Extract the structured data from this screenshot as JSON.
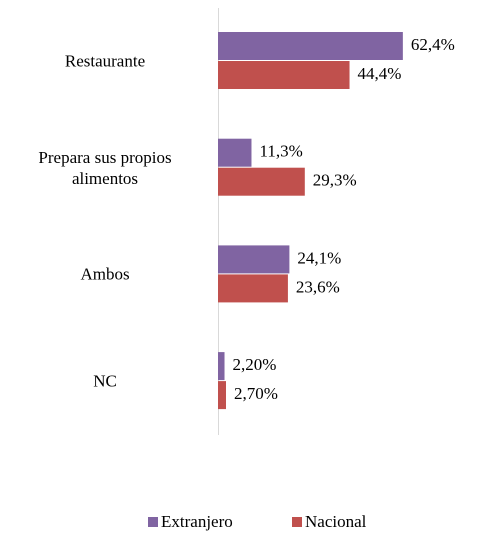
{
  "chart_data": {
    "type": "hbar",
    "categories": [
      "Restaurante",
      "Prepara sus propios alimentos",
      "Ambos",
      "NC"
    ],
    "series": [
      {
        "name": "Extranjero",
        "color": "#8064a2",
        "values": [
          62.4,
          11.3,
          24.1,
          2.2
        ],
        "value_labels": [
          "62,4%",
          "11,3%",
          "24,1%",
          "2,20%"
        ]
      },
      {
        "name": "Nacional",
        "color": "#c0504d",
        "values": [
          44.4,
          29.3,
          23.6,
          2.7
        ],
        "value_labels": [
          "44,4%",
          "29,3%",
          "23,6%",
          "2,70%"
        ]
      }
    ],
    "xlim": [
      0,
      80
    ],
    "legend": "bottom"
  }
}
